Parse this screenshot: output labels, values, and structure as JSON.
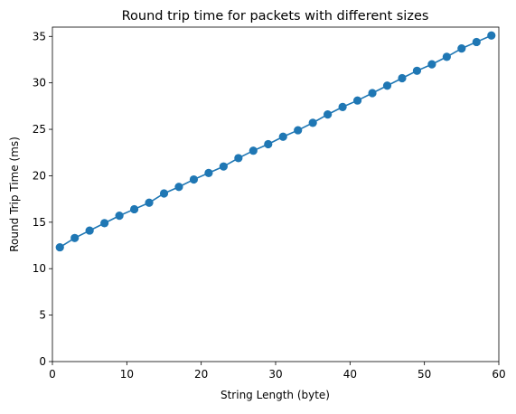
{
  "chart_data": {
    "type": "line",
    "title": "Round trip time for packets with different sizes",
    "xlabel": "String Length (byte)",
    "ylabel": "Round Trip Time (ms)",
    "xlim": [
      0,
      60
    ],
    "ylim": [
      0,
      36
    ],
    "xticks": [
      0,
      10,
      20,
      30,
      40,
      50,
      60
    ],
    "yticks": [
      0,
      5,
      10,
      15,
      20,
      25,
      30,
      35
    ],
    "grid": false,
    "marker": "circle",
    "series": [
      {
        "color": "#1f77b4",
        "x": [
          1,
          3,
          5,
          7,
          9,
          11,
          13,
          15,
          17,
          19,
          21,
          23,
          25,
          27,
          29,
          31,
          33,
          35,
          37,
          39,
          41,
          43,
          45,
          47,
          49,
          51,
          53,
          55,
          57,
          59
        ],
        "y": [
          12.3,
          13.3,
          14.1,
          14.9,
          15.7,
          16.4,
          17.1,
          18.1,
          18.8,
          19.6,
          20.3,
          21.0,
          21.9,
          22.7,
          23.4,
          24.2,
          24.9,
          25.7,
          26.6,
          27.4,
          28.1,
          28.9,
          29.7,
          30.5,
          31.3,
          32.0,
          32.8,
          33.7,
          34.4,
          35.1
        ]
      }
    ]
  }
}
